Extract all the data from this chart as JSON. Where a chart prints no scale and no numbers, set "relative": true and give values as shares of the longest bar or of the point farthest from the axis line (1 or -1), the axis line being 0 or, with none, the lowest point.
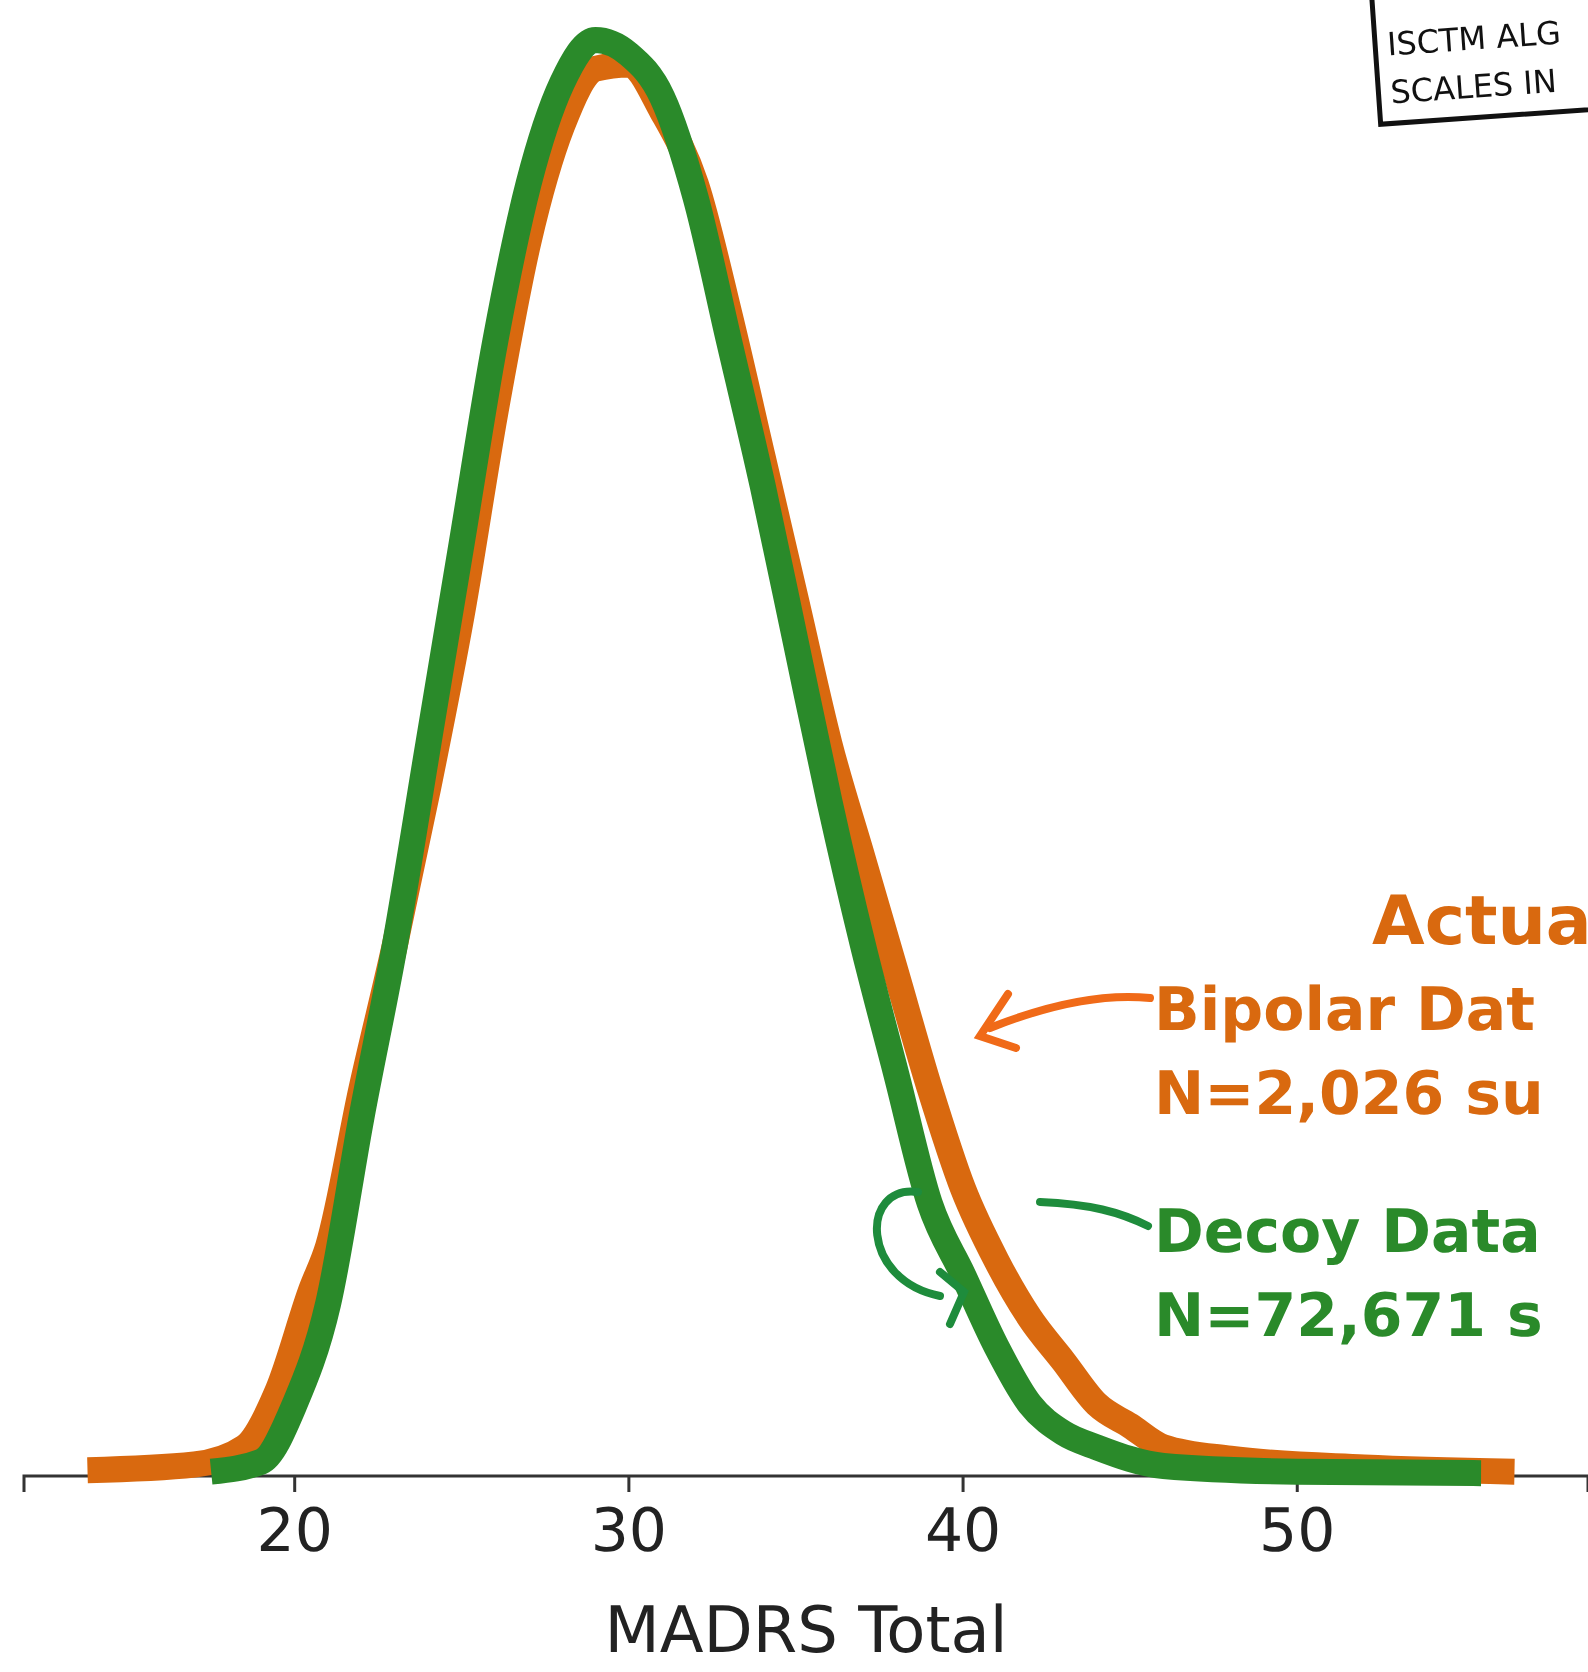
{
  "chart_data": {
    "type": "line",
    "relative": true,
    "xlabel": "MADRS Total",
    "xlim": [
      11.9,
      58.7
    ],
    "xticks": [
      20,
      30,
      40,
      50
    ],
    "grid": false,
    "marker": "none",
    "line_style": "solid",
    "series": [
      {
        "color": "#d9690f",
        "x": [
          13.8,
          17,
          18.5,
          19.5,
          20.5,
          21,
          22,
          23,
          24,
          25,
          26,
          27,
          28,
          29,
          30,
          31,
          32,
          33,
          34,
          35,
          36,
          37,
          38,
          39,
          40,
          41,
          42,
          43,
          44,
          45,
          46,
          48,
          52,
          56.5
        ],
        "values": [
          0.004,
          0.008,
          0.02,
          0.06,
          0.13,
          0.16,
          0.27,
          0.37,
          0.48,
          0.6,
          0.74,
          0.86,
          0.94,
          0.98,
          0.983,
          0.95,
          0.9,
          0.81,
          0.71,
          0.61,
          0.51,
          0.43,
          0.35,
          0.27,
          0.2,
          0.15,
          0.11,
          0.08,
          0.05,
          0.035,
          0.02,
          0.012,
          0.006,
          0.003
        ]
      },
      {
        "color": "#2a8a2a",
        "x": [
          17.5,
          19,
          20,
          21,
          22,
          23,
          24,
          25,
          26,
          27,
          28,
          29,
          30,
          31,
          32,
          33,
          34,
          35,
          36,
          37,
          38,
          39,
          40,
          41,
          42,
          43,
          44,
          46,
          50,
          55.5
        ],
        "values": [
          0.003,
          0.01,
          0.05,
          0.12,
          0.25,
          0.37,
          0.51,
          0.65,
          0.79,
          0.9,
          0.97,
          1,
          0.99,
          0.96,
          0.89,
          0.79,
          0.69,
          0.58,
          0.47,
          0.37,
          0.28,
          0.19,
          0.14,
          0.09,
          0.05,
          0.03,
          0.02,
          0.007,
          0.003,
          0.002
        ]
      }
    ],
    "annotations": [
      "Actua",
      "Bipolar Dat",
      "N=2,026 su",
      "Decoy Data",
      "N=72,671 s",
      "ISCTM ALG",
      "SCALES IN"
    ]
  }
}
